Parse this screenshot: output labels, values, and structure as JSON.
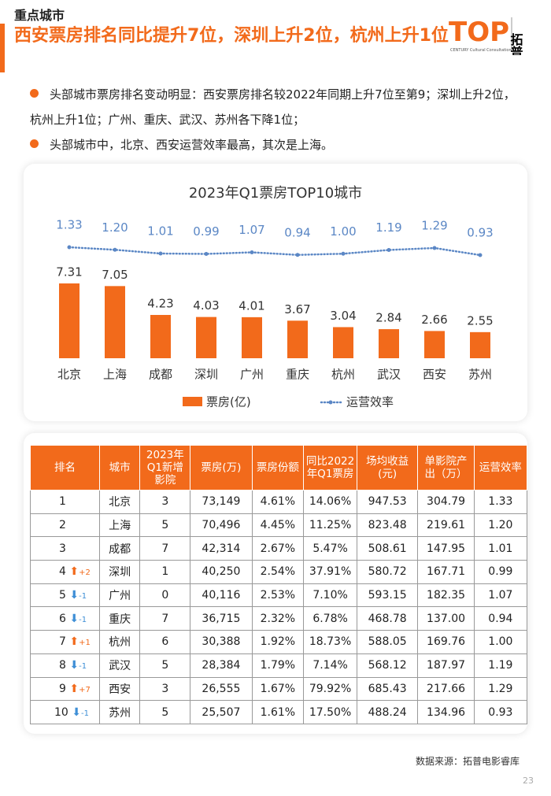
{
  "header": {
    "section": "重点城市",
    "title": "西安票房排名同比提升7位，深圳上升2位，杭州上升1位",
    "logo": {
      "mark": "TOP",
      "brand": "拓普",
      "tagline": "CENTURY Cultural Consultation"
    }
  },
  "bullets": [
    "头部城市票房排名变动明显：西安票房排名较2022年同期上升7位至第9；深圳上升2位，杭州上升1位；广州、重庆、武汉、苏州各下降1位；",
    "头部城市中，北京、西安运营效率最高，其次是上海。"
  ],
  "chart_data": {
    "type": "bar_line",
    "title": "2023年Q1票房TOP10城市",
    "categories": [
      "北京",
      "上海",
      "成都",
      "深圳",
      "广州",
      "重庆",
      "杭州",
      "武汉",
      "西安",
      "苏州"
    ],
    "series": [
      {
        "name": "票房(亿)",
        "type": "bar",
        "color": "#f26a1b",
        "values": [
          7.31,
          7.05,
          4.23,
          4.03,
          4.01,
          3.67,
          3.04,
          2.84,
          2.66,
          2.55
        ]
      },
      {
        "name": "运营效率",
        "type": "line",
        "color": "#5b87c5",
        "values": [
          1.33,
          1.2,
          1.01,
          0.99,
          1.07,
          0.94,
          1.0,
          1.19,
          1.29,
          0.93
        ],
        "value_labels": [
          "1.33",
          "1.20",
          "1.01",
          "0.99",
          "1.07",
          "0.94",
          "1.00",
          "1.19",
          "1.29",
          "0.93"
        ]
      }
    ],
    "legend": "bottom"
  },
  "table": {
    "header": [
      "排名",
      "城市",
      "2023年Q1新增影院",
      "票房(万)",
      "票房份额",
      "同比2022年Q1票房",
      "场均收益(元)",
      "单影院产出（万）",
      "运营效率"
    ],
    "rows": [
      {
        "rank": "1",
        "change": null,
        "cells": [
          "北京",
          "3",
          "73,149",
          "4.61%",
          "14.06%",
          "947.53",
          "304.79",
          "1.33"
        ]
      },
      {
        "rank": "2",
        "change": null,
        "cells": [
          "上海",
          "5",
          "70,496",
          "4.45%",
          "11.25%",
          "823.48",
          "219.61",
          "1.20"
        ]
      },
      {
        "rank": "3",
        "change": null,
        "cells": [
          "成都",
          "7",
          "42,314",
          "2.67%",
          "5.47%",
          "508.61",
          "147.95",
          "1.01"
        ]
      },
      {
        "rank": "4",
        "change": "+2",
        "cells": [
          "深圳",
          "1",
          "40,250",
          "2.54%",
          "37.91%",
          "580.72",
          "167.71",
          "0.99"
        ]
      },
      {
        "rank": "5",
        "change": "-1",
        "cells": [
          "广州",
          "0",
          "40,116",
          "2.53%",
          "7.10%",
          "593.15",
          "182.35",
          "1.07"
        ]
      },
      {
        "rank": "6",
        "change": "-1",
        "cells": [
          "重庆",
          "7",
          "36,715",
          "2.32%",
          "6.78%",
          "468.78",
          "137.00",
          "0.94"
        ]
      },
      {
        "rank": "7",
        "change": "+1",
        "cells": [
          "杭州",
          "6",
          "30,388",
          "1.92%",
          "18.73%",
          "588.05",
          "169.76",
          "1.00"
        ]
      },
      {
        "rank": "8",
        "change": "-1",
        "cells": [
          "武汉",
          "5",
          "28,384",
          "1.79%",
          "7.14%",
          "568.12",
          "187.97",
          "1.19"
        ]
      },
      {
        "rank": "9",
        "change": "+7",
        "cells": [
          "西安",
          "3",
          "26,555",
          "1.67%",
          "79.92%",
          "685.43",
          "217.66",
          "1.29"
        ]
      },
      {
        "rank": "10",
        "change": "-1",
        "cells": [
          "苏州",
          "5",
          "25,507",
          "1.61%",
          "17.50%",
          "488.24",
          "134.96",
          "0.93"
        ]
      }
    ]
  },
  "source": "数据来源：拓普电影睿库",
  "page_number": "23"
}
